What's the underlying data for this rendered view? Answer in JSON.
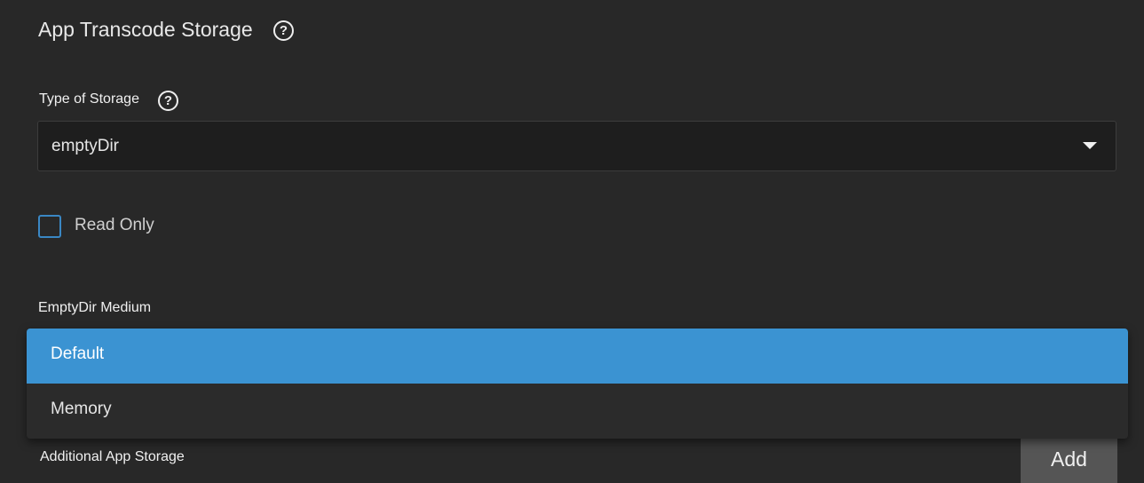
{
  "section": {
    "title": "App Transcode Storage",
    "help_icon": "help-circle-icon"
  },
  "type_of_storage": {
    "label": "Type of Storage",
    "value": "emptyDir",
    "help_icon": "help-circle-icon"
  },
  "read_only": {
    "label": "Read Only",
    "checked": false
  },
  "emptydir_medium": {
    "label": "EmptyDir Medium",
    "options": [
      "Default",
      "Memory"
    ],
    "selected": "Default"
  },
  "additional_storage": {
    "label": "Additional App Storage",
    "add_label": "Add"
  },
  "colors": {
    "accent": "#3b93d2",
    "background": "#282828"
  }
}
